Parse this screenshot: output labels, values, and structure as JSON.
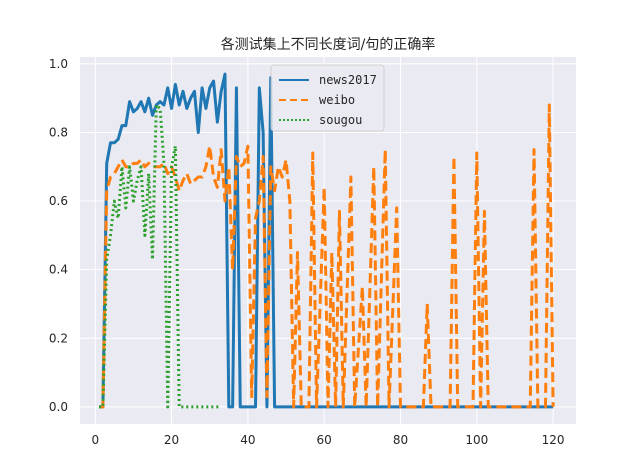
{
  "chart_data": {
    "type": "line",
    "title": "各测试集上不同长度词/句的正确率",
    "xlabel": "",
    "ylabel": "",
    "xlim": [
      -4,
      126
    ],
    "ylim": [
      -0.05,
      1.02
    ],
    "xticks": [
      0,
      20,
      40,
      60,
      80,
      100,
      120
    ],
    "yticks": [
      0.0,
      0.2,
      0.4,
      0.6,
      0.8,
      1.0
    ],
    "xtick_labels": [
      "0",
      "20",
      "40",
      "60",
      "80",
      "100",
      "120"
    ],
    "ytick_labels": [
      "0.0",
      "0.2",
      "0.4",
      "0.6",
      "0.8",
      "1.0"
    ],
    "grid": true,
    "legend_position": "top-center",
    "series": [
      {
        "name": "news2017",
        "color": "#1f77b4",
        "dash": "solid",
        "points": [
          [
            1,
            0
          ],
          [
            2,
            0
          ],
          [
            3,
            0.71
          ],
          [
            4,
            0.77
          ],
          [
            5,
            0.77
          ],
          [
            6,
            0.78
          ],
          [
            7,
            0.82
          ],
          [
            8,
            0.82
          ],
          [
            9,
            0.89
          ],
          [
            10,
            0.86
          ],
          [
            11,
            0.87
          ],
          [
            12,
            0.89
          ],
          [
            13,
            0.86
          ],
          [
            14,
            0.9
          ],
          [
            15,
            0.85
          ],
          [
            16,
            0.88
          ],
          [
            17,
            0.89
          ],
          [
            18,
            0.88
          ],
          [
            19,
            0.93
          ],
          [
            20,
            0.87
          ],
          [
            21,
            0.94
          ],
          [
            22,
            0.88
          ],
          [
            23,
            0.92
          ],
          [
            24,
            0.87
          ],
          [
            25,
            0.9
          ],
          [
            26,
            0.92
          ],
          [
            27,
            0.8
          ],
          [
            28,
            0.93
          ],
          [
            29,
            0.87
          ],
          [
            30,
            0.93
          ],
          [
            31,
            0.95
          ],
          [
            32,
            0.83
          ],
          [
            33,
            0.92
          ],
          [
            34,
            0.97
          ],
          [
            35,
            0
          ],
          [
            36,
            0
          ],
          [
            37,
            0.93
          ],
          [
            38,
            0
          ],
          [
            39,
            0
          ],
          [
            40,
            0
          ],
          [
            41,
            0
          ],
          [
            42,
            0
          ],
          [
            43,
            0.93
          ],
          [
            44,
            0.8
          ],
          [
            45,
            0
          ],
          [
            46,
            0.96
          ],
          [
            47,
            0
          ],
          [
            48,
            0
          ],
          [
            60,
            0
          ],
          [
            80,
            0
          ],
          [
            100,
            0
          ],
          [
            120,
            0
          ]
        ]
      },
      {
        "name": "weibo",
        "color": "#ff7f0e",
        "dash": "dashed",
        "points": [
          [
            1,
            0
          ],
          [
            2,
            0
          ],
          [
            3,
            0.63
          ],
          [
            4,
            0.67
          ],
          [
            5,
            0.68
          ],
          [
            6,
            0.7
          ],
          [
            7,
            0.72
          ],
          [
            8,
            0.7
          ],
          [
            9,
            0.7
          ],
          [
            10,
            0.71
          ],
          [
            11,
            0.71
          ],
          [
            12,
            0.72
          ],
          [
            13,
            0.7
          ],
          [
            14,
            0.71
          ],
          [
            15,
            0.7
          ],
          [
            16,
            0.7
          ],
          [
            17,
            0.7
          ],
          [
            18,
            0.71
          ],
          [
            19,
            0.68
          ],
          [
            20,
            0.7
          ],
          [
            21,
            0.67
          ],
          [
            22,
            0.63
          ],
          [
            23,
            0.66
          ],
          [
            24,
            0.68
          ],
          [
            25,
            0.65
          ],
          [
            26,
            0.66
          ],
          [
            27,
            0.67
          ],
          [
            28,
            0.67
          ],
          [
            29,
            0.7
          ],
          [
            30,
            0.76
          ],
          [
            31,
            0.67
          ],
          [
            32,
            0.64
          ],
          [
            33,
            0.75
          ],
          [
            34,
            0.6
          ],
          [
            35,
            0.7
          ],
          [
            36,
            0.4
          ],
          [
            37,
            0.73
          ],
          [
            38,
            0.7
          ],
          [
            39,
            0.71
          ],
          [
            40,
            0.76
          ],
          [
            41,
            0.03
          ],
          [
            42,
            0.55
          ],
          [
            43,
            0.6
          ],
          [
            44,
            0.73
          ],
          [
            45,
            0.03
          ],
          [
            46,
            0.7
          ],
          [
            47,
            0.63
          ],
          [
            48,
            0.7
          ],
          [
            49,
            0.67
          ],
          [
            50,
            0.72
          ],
          [
            51,
            0.6
          ],
          [
            52,
            0
          ],
          [
            53,
            0.45
          ],
          [
            54,
            0
          ],
          [
            56,
            0
          ],
          [
            57,
            0.74
          ],
          [
            58,
            0
          ],
          [
            60,
            0.64
          ],
          [
            61,
            0
          ],
          [
            62,
            0.45
          ],
          [
            63,
            0
          ],
          [
            64,
            0.57
          ],
          [
            65,
            0
          ],
          [
            67,
            0.67
          ],
          [
            68,
            0
          ],
          [
            70,
            0.35
          ],
          [
            71,
            0
          ],
          [
            73,
            0.7
          ],
          [
            74,
            0
          ],
          [
            76,
            0.75
          ],
          [
            77,
            0
          ],
          [
            79,
            0.58
          ],
          [
            80,
            0
          ],
          [
            86,
            0
          ],
          [
            87,
            0.3
          ],
          [
            88,
            0
          ],
          [
            93,
            0
          ],
          [
            94,
            0.73
          ],
          [
            95,
            0
          ],
          [
            99,
            0
          ],
          [
            100,
            0.74
          ],
          [
            101,
            0
          ],
          [
            102,
            0.57
          ],
          [
            103,
            0
          ],
          [
            114,
            0
          ],
          [
            115,
            0.75
          ],
          [
            116,
            0
          ],
          [
            118,
            0
          ],
          [
            119,
            0.88
          ],
          [
            120,
            0
          ]
        ]
      },
      {
        "name": "sougou",
        "color": "#2ca02c",
        "dash": "dotted",
        "points": [
          [
            1,
            0
          ],
          [
            2,
            0
          ],
          [
            3,
            0.43
          ],
          [
            4,
            0.5
          ],
          [
            5,
            0.6
          ],
          [
            6,
            0.55
          ],
          [
            7,
            0.7
          ],
          [
            8,
            0.58
          ],
          [
            9,
            0.7
          ],
          [
            10,
            0.6
          ],
          [
            11,
            0.66
          ],
          [
            12,
            0.7
          ],
          [
            13,
            0.5
          ],
          [
            14,
            0.68
          ],
          [
            15,
            0.43
          ],
          [
            16,
            0.88
          ],
          [
            17,
            0.87
          ],
          [
            18,
            0.71
          ],
          [
            19,
            0.0
          ],
          [
            20,
            0.7
          ],
          [
            21,
            0.76
          ],
          [
            22,
            0
          ],
          [
            30,
            0
          ],
          [
            33,
            0
          ]
        ]
      }
    ]
  }
}
